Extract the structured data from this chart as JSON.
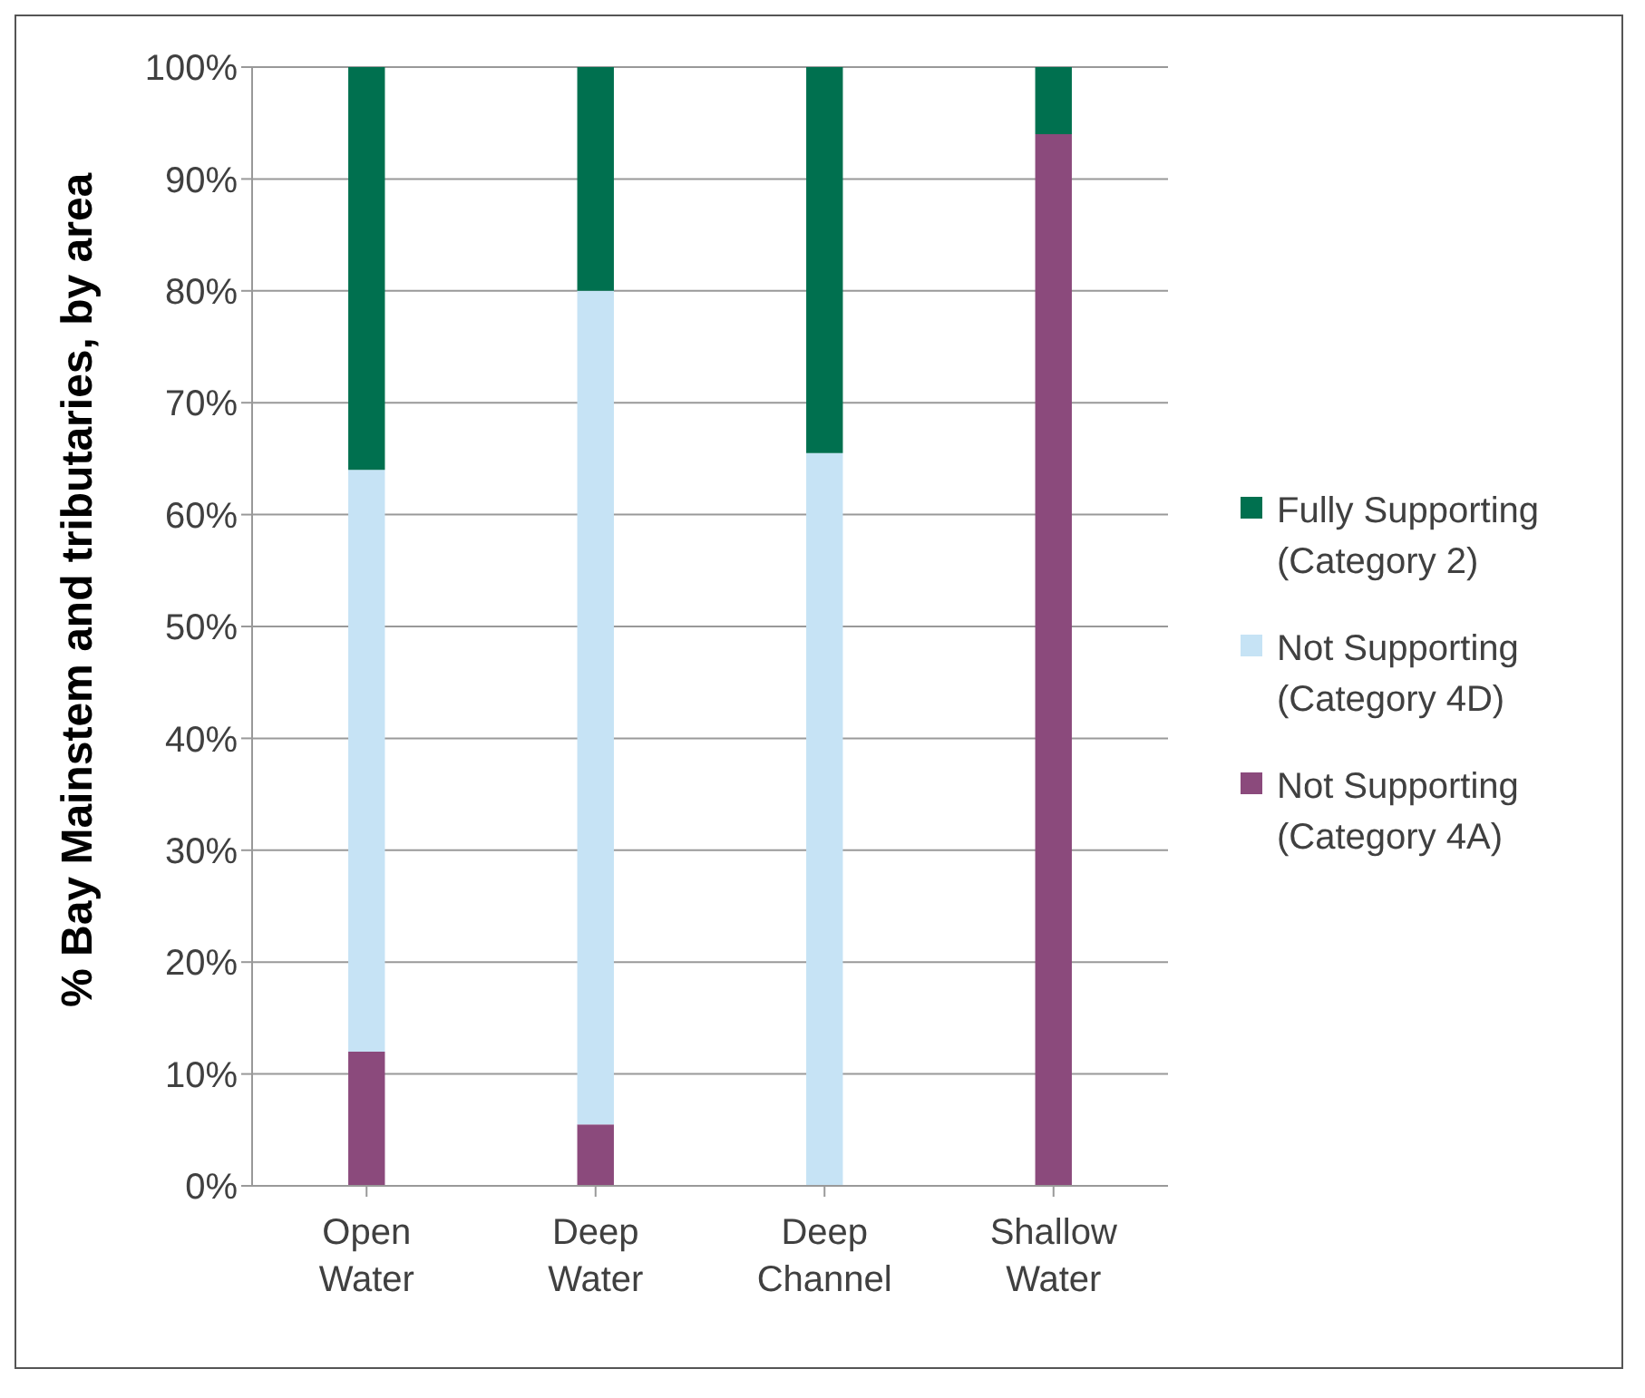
{
  "chart_data": {
    "type": "bar",
    "stacked": true,
    "ylabel": "% Bay Mainstem and tributaries, by area",
    "categories": [
      "Open Water",
      "Deep Water",
      "Deep Channel",
      "Shallow Water"
    ],
    "series": [
      {
        "name": "Not Supporting (Category 4A)",
        "color": "#8b4a7c",
        "values": [
          12,
          5.5,
          0,
          94
        ]
      },
      {
        "name": "Not Supporting (Category 4D)",
        "color": "#c6e3f5",
        "values": [
          52,
          74.5,
          65.5,
          0
        ]
      },
      {
        "name": "Fully Supporting (Category 2)",
        "color": "#00704f",
        "values": [
          36,
          20,
          34.5,
          6
        ]
      }
    ],
    "ylim": [
      0,
      100
    ],
    "yticks": [
      {
        "value": 0,
        "label": "0%"
      },
      {
        "value": 10,
        "label": "10%"
      },
      {
        "value": 20,
        "label": "20%"
      },
      {
        "value": 30,
        "label": "30%"
      },
      {
        "value": 40,
        "label": "40%"
      },
      {
        "value": 50,
        "label": "50%"
      },
      {
        "value": 60,
        "label": "60%"
      },
      {
        "value": 70,
        "label": "70%"
      },
      {
        "value": 80,
        "label": "80%"
      },
      {
        "value": 90,
        "label": "90%"
      },
      {
        "value": 100,
        "label": "100%"
      }
    ],
    "grid": "y",
    "legend": "right"
  }
}
